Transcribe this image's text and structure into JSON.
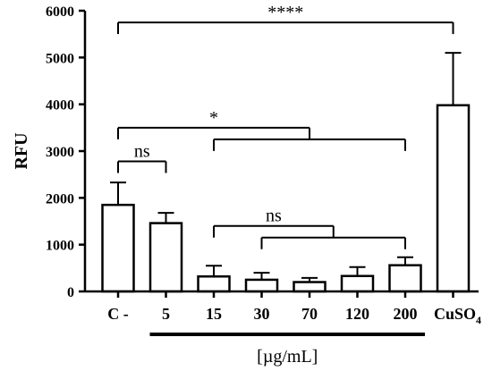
{
  "chart_data": {
    "type": "bar",
    "categories": [
      "C -",
      "5",
      "15",
      "30",
      "70",
      "120",
      "200",
      "CuSO"
    ],
    "last_category_subscript": "4",
    "values": [
      1850,
      1460,
      320,
      250,
      200,
      330,
      560,
      3980
    ],
    "errors": [
      480,
      220,
      230,
      150,
      90,
      190,
      170,
      1120
    ],
    "ylabel": "RFU",
    "xlabel": "[µg/mL]",
    "ylim": [
      0,
      6000
    ],
    "yticks": [
      0,
      1000,
      2000,
      3000,
      4000,
      5000,
      6000
    ],
    "bar_fill": "#ffffff",
    "bar_stroke": "#000000",
    "grid": false,
    "concentration_range": {
      "from": 1,
      "to": 6
    },
    "significance": [
      {
        "label": "****",
        "left": [
          0
        ],
        "right": [
          7
        ],
        "y": 5750
      },
      {
        "label": "*",
        "left": [
          0
        ],
        "right": [
          2,
          6
        ],
        "y": 3500
      },
      {
        "label": "ns",
        "left": [
          0
        ],
        "right": [
          1
        ],
        "y": 2780
      },
      {
        "label": "ns",
        "left": [
          2
        ],
        "right": [
          3,
          6
        ],
        "y": 1400
      }
    ]
  }
}
